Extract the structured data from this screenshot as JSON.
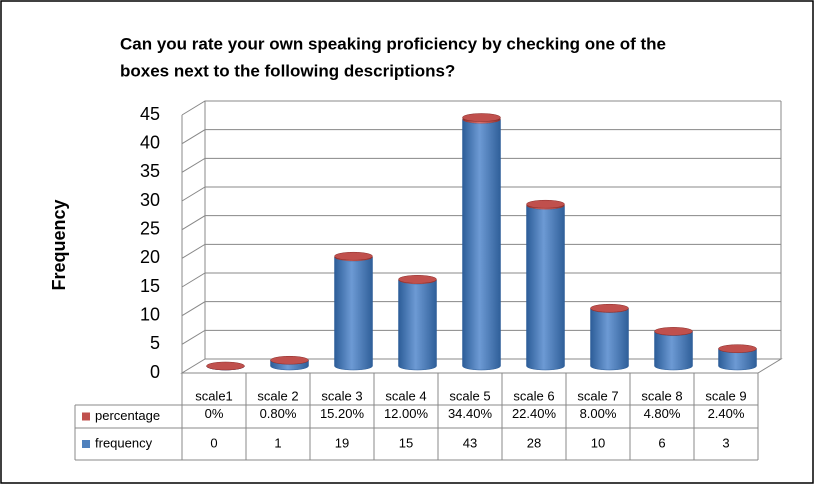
{
  "chart_data": {
    "type": "bar3d",
    "title": [
      "Can you rate your own speaking proficiency by checking one of the",
      "boxes next to the following descriptions?"
    ],
    "y_label": "Frequency",
    "categories": [
      "scale1",
      "scale 2",
      "scale 3",
      "scale 4",
      "scale 5",
      "scale 6",
      "scale 7",
      "scale 8",
      "scale 9"
    ],
    "series": [
      {
        "name": "percentage",
        "color": "#c0504d",
        "values": [
          0,
          0.008,
          0.152,
          0.12,
          0.344,
          0.224,
          0.08,
          0.048,
          0.024
        ],
        "value_labels": [
          "0%",
          "0.80%",
          "15.20%",
          "12.00%",
          "34.40%",
          "22.40%",
          "8.00%",
          "4.80%",
          "2.40%"
        ]
      },
      {
        "name": "frequency",
        "color": "#4f81bd",
        "values": [
          0,
          1,
          19,
          15,
          43,
          28,
          10,
          6,
          3
        ]
      }
    ],
    "stacked": true,
    "ylim": [
      0,
      45
    ],
    "yticks": [
      0,
      5,
      10,
      15,
      20,
      25,
      30,
      35,
      40,
      45
    ],
    "grid": true
  }
}
